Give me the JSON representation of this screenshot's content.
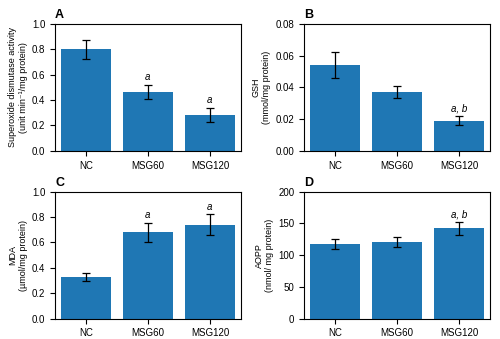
{
  "chart_data": [
    {
      "type": "bar",
      "title": "A",
      "ylabel": "Superoxide dismutase activity\n(unit min⁻¹/mg protein)",
      "categories": [
        "NC",
        "MSG60",
        "MSG120"
      ],
      "values": [
        0.8,
        0.465,
        0.285
      ],
      "errors": [
        0.075,
        0.055,
        0.055
      ],
      "ylim": [
        0.0,
        1.0
      ],
      "yticks": [
        0.0,
        0.2,
        0.4,
        0.6,
        0.8,
        1.0
      ],
      "annotations": [
        {
          "category": "MSG60",
          "text": "a"
        },
        {
          "category": "MSG120",
          "text": "a"
        }
      ]
    },
    {
      "type": "bar",
      "title": "B",
      "ylabel": "GSH\n(mmol/mg protein)",
      "categories": [
        "NC",
        "MSG60",
        "MSG120"
      ],
      "values": [
        0.054,
        0.037,
        0.019
      ],
      "errors": [
        0.008,
        0.004,
        0.003
      ],
      "ylim": [
        0.0,
        0.08
      ],
      "yticks": [
        {
          "value": 0.0,
          "label": "0.00"
        },
        0.02,
        0.04,
        0.06,
        0.08
      ],
      "annotations": [
        {
          "category": "MSG120",
          "text": "a, b"
        }
      ]
    },
    {
      "type": "bar",
      "title": "C",
      "ylabel": "MDA\n(µmol/mg protein)",
      "categories": [
        "NC",
        "MSG60",
        "MSG120"
      ],
      "values": [
        0.33,
        0.68,
        0.74
      ],
      "errors": [
        0.03,
        0.075,
        0.08
      ],
      "ylim": [
        0.0,
        1.0
      ],
      "yticks": [
        0.0,
        0.2,
        0.4,
        0.6,
        0.8,
        1.0
      ],
      "annotations": [
        {
          "category": "MSG60",
          "text": "a"
        },
        {
          "category": "MSG120",
          "text": "a"
        }
      ]
    },
    {
      "type": "bar",
      "title": "D",
      "ylabel": "AOPP\n(nmol/ mg protein)",
      "categories": [
        "NC",
        "MSG60",
        "MSG120"
      ],
      "values": [
        118,
        120,
        142
      ],
      "errors": [
        8,
        8,
        10
      ],
      "ylim": [
        0,
        200
      ],
      "yticks": [
        0,
        50,
        100,
        150,
        200
      ],
      "annotations": [
        {
          "category": "MSG120",
          "text": "a, b"
        }
      ]
    }
  ]
}
